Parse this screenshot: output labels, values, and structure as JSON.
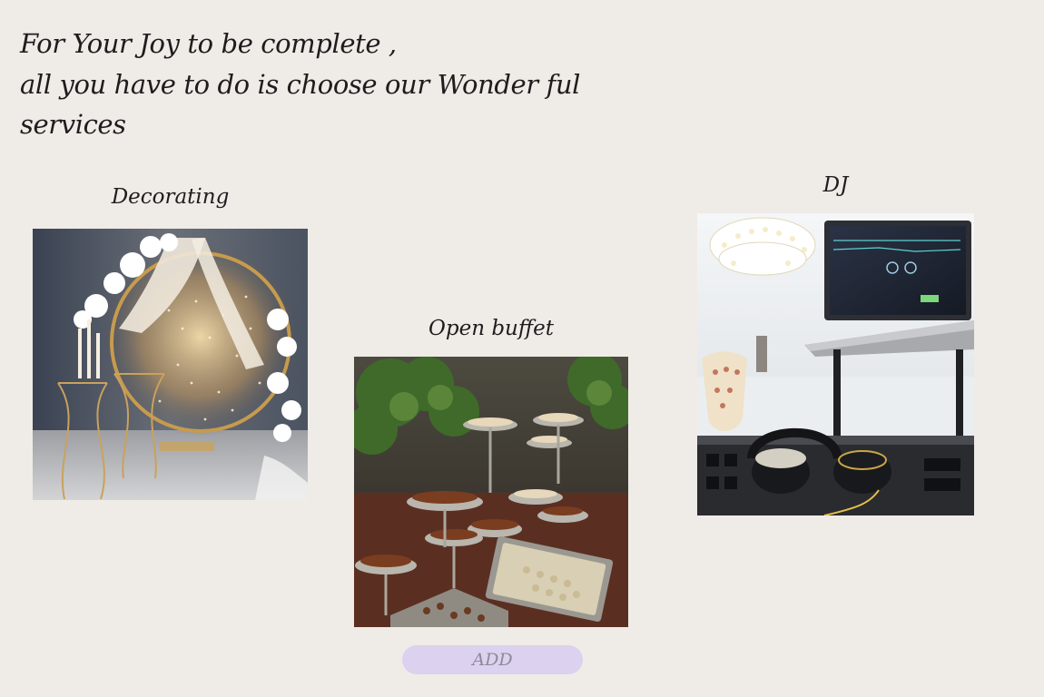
{
  "headline": {
    "line1": "For Your Joy to be complete ,",
    "line2": "all you have to do is choose our Wonder ful",
    "line3": "services"
  },
  "services": [
    {
      "title": "Decorating",
      "image": "decorating-photo"
    },
    {
      "title": "Open buffet",
      "image": "buffet-photo"
    },
    {
      "title": "DJ",
      "image": "dj-photo"
    }
  ],
  "add_button": {
    "label": "ADD"
  },
  "colors": {
    "background": "#efebe7",
    "button_bg": "#dcd1ee",
    "button_text": "#8e8a9b",
    "text": "#1d1d1d"
  }
}
